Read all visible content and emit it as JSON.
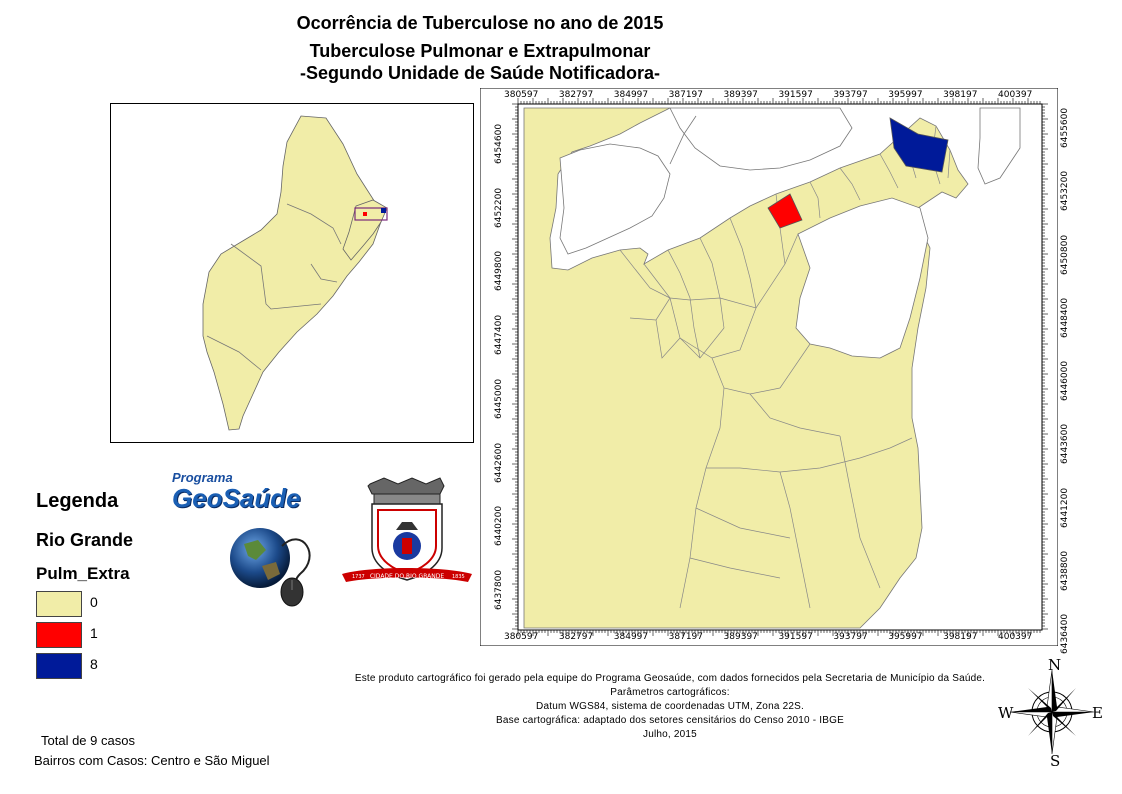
{
  "title": {
    "line1": "Ocorrência de Tuberculose no ano de 2015",
    "line2": "Tuberculose Pulmonar e Extrapulmonar",
    "line3": "-Segundo Unidade de Saúde Notificadora-"
  },
  "legend": {
    "heading": "Legenda",
    "layer": "Rio Grande",
    "field": "Pulm_Extra",
    "classes": [
      {
        "label": "0",
        "color": "#f1eda8"
      },
      {
        "label": "1",
        "color": "#ff0000"
      },
      {
        "label": "8",
        "color": "#001a99"
      }
    ]
  },
  "logos": {
    "program_small": "Programa",
    "program_big": "GeoSaúde",
    "emblem_ribbon": "CIDADE DO RIO GRANDE",
    "emblem_year_left": "1737",
    "emblem_year_right": "1835"
  },
  "grid": {
    "x_ticks": [
      "380597",
      "382797",
      "384997",
      "387197",
      "389397",
      "391597",
      "393797",
      "395997",
      "398197",
      "400397"
    ],
    "y_ticks": [
      "6437800",
      "6440200",
      "6442600",
      "6445000",
      "6447400",
      "6449800",
      "6452200",
      "6454600"
    ],
    "y_ticks_right": [
      "6436400",
      "6438800",
      "6441200",
      "6443600",
      "6446000",
      "6448400",
      "6450800",
      "6453200",
      "6455600"
    ]
  },
  "credits": {
    "line1": "Este produto cartográfico foi gerado pela equipe do Programa Geosaúde, com dados fornecidos pela Secretaria de Município da Saúde.",
    "line2": "Parâmetros cartográficos:",
    "line3": "Datum WGS84, sistema de coordenadas UTM, Zona 22S.",
    "line4": "Base cartográfica: adaptado dos setores censitários do Censo 2010 - IBGE",
    "line5": "Julho, 2015"
  },
  "notes": {
    "total": "Total de 9 casos",
    "bairros": "Bairros com Casos: Centro e São Miguel"
  },
  "compass": {
    "n": "N",
    "s": "S",
    "e": "E",
    "w": "W"
  }
}
